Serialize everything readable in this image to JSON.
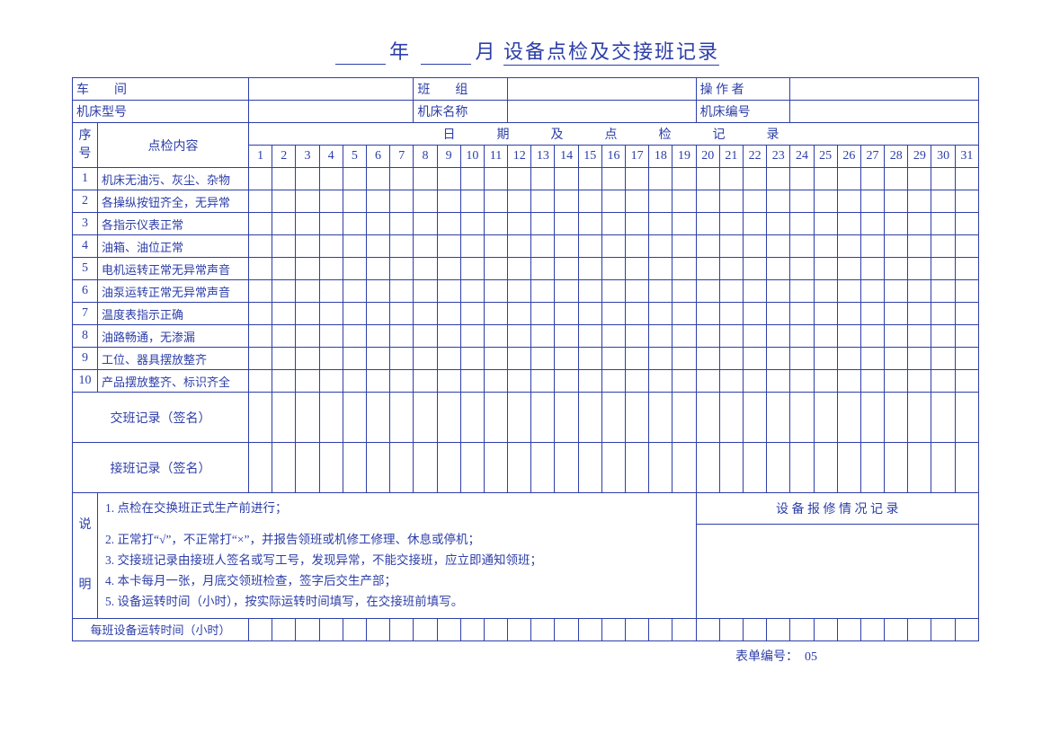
{
  "title": {
    "year_char": "年",
    "month_char": "月",
    "rest": "设备点检及交接班记录"
  },
  "header_row1": {
    "workshop_label": "车　　间",
    "team_label": "班　　组",
    "operator_label": "操 作 者"
  },
  "header_row2": {
    "model_label": "机床型号",
    "name_label": "机床名称",
    "number_label": "机床编号"
  },
  "columns": {
    "seq": "序号",
    "content": "点检内容",
    "date_header": "日　　期　　及　　点　　检　　记　　录"
  },
  "days": [
    "1",
    "2",
    "3",
    "4",
    "5",
    "6",
    "7",
    "8",
    "9",
    "10",
    "11",
    "12",
    "13",
    "14",
    "15",
    "16",
    "17",
    "18",
    "19",
    "20",
    "21",
    "22",
    "23",
    "24",
    "25",
    "26",
    "27",
    "28",
    "29",
    "30",
    "31"
  ],
  "items": [
    {
      "no": "1",
      "text": "机床无油污、灰尘、杂物"
    },
    {
      "no": "2",
      "text": "各操纵按钮齐全，无异常"
    },
    {
      "no": "3",
      "text": "各指示仪表正常"
    },
    {
      "no": "4",
      "text": "油箱、油位正常"
    },
    {
      "no": "5",
      "text": "电机运转正常无异常声音"
    },
    {
      "no": "6",
      "text": "油泵运转正常无异常声音"
    },
    {
      "no": "7",
      "text": "温度表指示正确"
    },
    {
      "no": "8",
      "text": "油路畅通，无渗漏"
    },
    {
      "no": "9",
      "text": "工位、器具摆放整齐"
    },
    {
      "no": "10",
      "text": "产品摆放整齐、标识齐全"
    }
  ],
  "handover": {
    "out": "交班记录（签名）",
    "in": "接班记录（签名）"
  },
  "instructions": {
    "label": "说明",
    "lines": [
      "1. 点检在交换班正式生产前进行；",
      "2. 正常打“√”，不正常打“×”，并报告领班或机修工修理、休息或停机；",
      "3. 交接班记录由接班人签名或写工号，发现异常，不能交接班，应立即通知领班；",
      "4. 本卡每月一张，月底交领班检查，签字后交生产部；",
      "5. 设备运转时间（小时），按实际运转时间填写，在交接班前填写。"
    ],
    "repair_header": "设 备 报 修 情 况 记 录"
  },
  "runtime_label": "每班设备运转时间（小时）",
  "footer": {
    "label": "表单编号：",
    "value": "05"
  },
  "colors": {
    "line": "#2d3ea8",
    "text": "#2d3ea8",
    "bg": "#ffffff"
  }
}
